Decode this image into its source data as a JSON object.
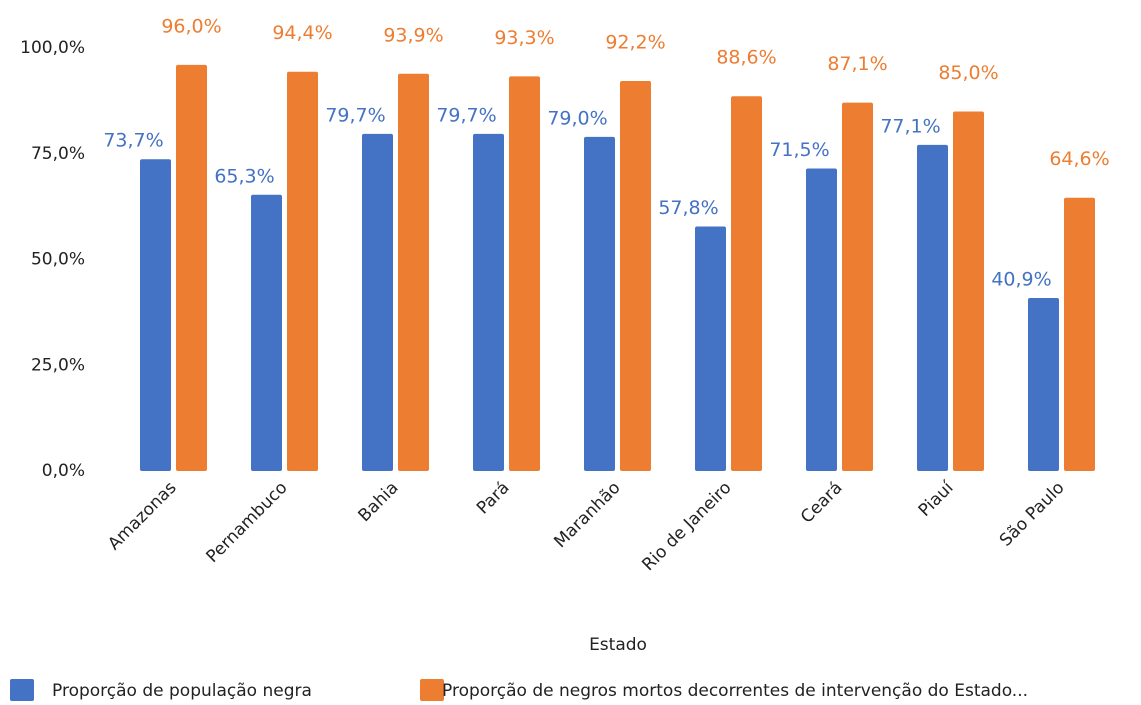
{
  "chart_data": {
    "type": "bar",
    "x_label": "Estado",
    "categories": [
      "Amazonas",
      "Pernambuco",
      "Bahia",
      "Pará",
      "Maranhão",
      "Rio de Janeiro",
      "Ceará",
      "Piauí",
      "São Paulo"
    ],
    "series": [
      {
        "name": "Proporção de população negra",
        "color": "#4472c4",
        "values": [
          73.7,
          65.3,
          79.7,
          79.7,
          79.0,
          57.8,
          71.5,
          77.1,
          40.9
        ],
        "value_labels": [
          "73,7%",
          "65,3%",
          "79,7%",
          "79,7%",
          "79,0%",
          "57,8%",
          "71,5%",
          "77,1%",
          "40,9%"
        ]
      },
      {
        "name": "Proporção de negros mortos decorrentes de intervenção do Estado...",
        "color": "#ed7d31",
        "values": [
          96.0,
          94.4,
          93.9,
          93.3,
          92.2,
          88.6,
          87.1,
          85.0,
          64.6
        ],
        "value_labels": [
          "96,0%",
          "94,4%",
          "93,9%",
          "93,3%",
          "92,2%",
          "88,6%",
          "87,1%",
          "85,0%",
          "64,6%"
        ]
      }
    ],
    "ylim": [
      0,
      100
    ],
    "yticks": [
      {
        "value": 0,
        "label": "0,0%"
      },
      {
        "value": 25,
        "label": "25,0%"
      },
      {
        "value": 50,
        "label": "50,0%"
      },
      {
        "value": 75,
        "label": "75,0%"
      },
      {
        "value": 100,
        "label": "100,0%"
      }
    ],
    "grid": false
  }
}
